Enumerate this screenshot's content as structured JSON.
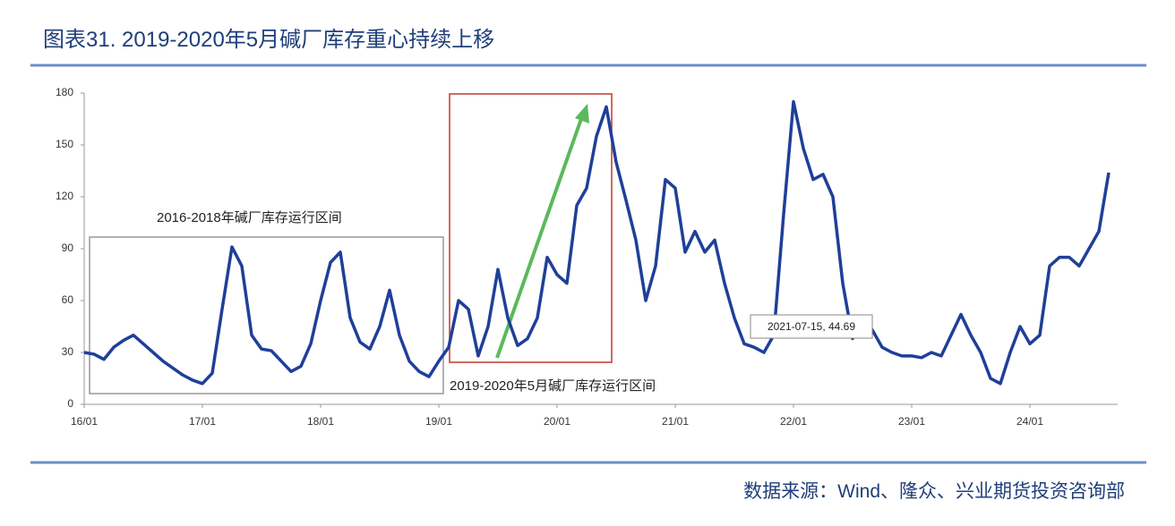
{
  "chart_data": {
    "type": "line",
    "title": "图表31. 2019-2020年5月碱厂库存重心持续上移",
    "source": "数据来源：Wind、隆众、兴业期货投资咨询部",
    "annotations": [
      "2016-2018年碱厂库存运行区间",
      "2019-2020年5月碱厂库存运行区间",
      "2021-07-15, 44.69"
    ],
    "ylim": [
      0,
      180
    ],
    "yticks": [
      0,
      30,
      60,
      90,
      120,
      150,
      180
    ],
    "grid": false,
    "categories": [
      "16/01",
      null,
      null,
      null,
      null,
      null,
      null,
      null,
      null,
      null,
      null,
      null,
      "17/01",
      null,
      null,
      null,
      null,
      null,
      null,
      null,
      null,
      null,
      null,
      null,
      "18/01",
      null,
      null,
      null,
      null,
      null,
      null,
      null,
      null,
      null,
      null,
      null,
      "19/01",
      null,
      null,
      null,
      null,
      null,
      null,
      null,
      null,
      null,
      null,
      null,
      "20/01",
      null,
      null,
      null,
      null,
      null,
      null,
      null,
      null,
      null,
      null,
      null,
      "21/01",
      null,
      null,
      null,
      null,
      null,
      null,
      null,
      null,
      null,
      null,
      null,
      "22/01",
      null,
      null,
      null,
      null,
      null,
      null,
      null,
      null,
      null,
      null,
      null,
      "23/01",
      null,
      null,
      null,
      null,
      null,
      null,
      null,
      null,
      null,
      null,
      null,
      "24/01",
      null,
      null,
      null,
      null,
      null,
      null,
      null,
      null
    ],
    "series": [
      {
        "name": "碱厂库存",
        "color": "#1f3f99",
        "values": [
          30,
          29,
          26,
          33,
          37,
          40,
          35,
          30,
          25,
          21,
          17,
          14,
          12,
          18,
          55,
          91,
          80,
          40,
          32,
          31,
          25,
          19,
          22,
          35,
          60,
          82,
          88,
          50,
          36,
          32,
          45,
          66,
          40,
          25,
          19,
          16,
          25,
          33,
          60,
          55,
          28,
          45,
          78,
          50,
          34,
          38,
          50,
          85,
          75,
          70,
          115,
          125,
          155,
          172,
          140,
          118,
          95,
          60,
          80,
          130,
          125,
          88,
          100,
          88,
          95,
          70,
          50,
          35,
          33,
          30,
          40,
          110,
          175,
          148,
          130,
          133,
          120,
          70,
          38,
          50,
          43,
          33,
          30,
          28,
          28,
          27,
          30,
          28,
          40,
          52,
          40,
          30,
          15,
          12,
          30,
          45,
          35,
          40,
          80,
          85,
          85,
          80,
          90,
          100,
          134
        ]
      }
    ]
  }
}
